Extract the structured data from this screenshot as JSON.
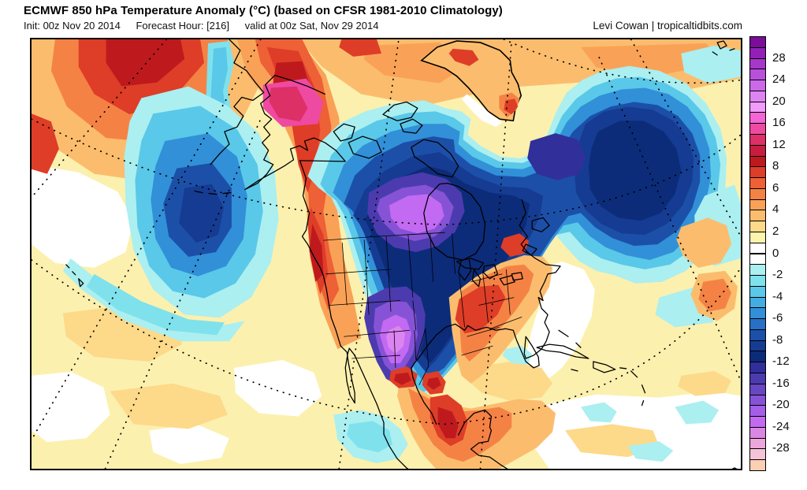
{
  "header": {
    "title": "ECMWF 850 hPa Temperature Anomaly (°C) (based on CFSR 1981-2010 Climatology)",
    "init": "Init: 00z Nov 20 2014",
    "forecast_hour": "Forecast Hour: [216]",
    "valid": "valid at 00z Sat, Nov 29 2014",
    "credit": "Levi Cowan | tropicaltidbits.com"
  },
  "chart_data": {
    "type": "heatmap",
    "title": "ECMWF 850 hPa Temperature Anomaly (°C)",
    "units": "°C",
    "climatology": "CFSR 1981-2010",
    "legend_position": "right",
    "colorbar": {
      "orientation": "vertical",
      "top_value_exceeds": 30,
      "bottom_value_exceeds": -30,
      "cells_top_to_bottom": [
        "#7B0D9B",
        "#9220B6",
        "#A637CA",
        "#B950DA",
        "#CB69E8",
        "#DC85F2",
        "#F19BFA",
        "#F366D6",
        "#EE4AA2",
        "#DC3066",
        "#C61E40",
        "#BE1A1E",
        "#DE3D27",
        "#EE6036",
        "#F58245",
        "#F9A257",
        "#FBBD6D",
        "#FDD98A",
        "#FEF4AB",
        "#FFFFFF",
        "#FFFFFF",
        "#ABEFF0",
        "#7FE1EC",
        "#5AC8E8",
        "#43ACE2",
        "#3190D8",
        "#2870C6",
        "#1C50A8",
        "#153C92",
        "#0C2C7A",
        "#312F9A",
        "#4C3BAE",
        "#6847C2",
        "#8653D6",
        "#A45EE8",
        "#C36AF2",
        "#D986E4",
        "#EBA7DA",
        "#F5C3D8",
        "#FACFB2"
      ],
      "labels": [
        {
          "text": "28",
          "after_cell": 2
        },
        {
          "text": "24",
          "after_cell": 4
        },
        {
          "text": "20",
          "after_cell": 6
        },
        {
          "text": "16",
          "after_cell": 8
        },
        {
          "text": "12",
          "after_cell": 10
        },
        {
          "text": "8",
          "after_cell": 12
        },
        {
          "text": "6",
          "after_cell": 14
        },
        {
          "text": "4",
          "after_cell": 16
        },
        {
          "text": "2",
          "after_cell": 18
        },
        {
          "text": "0",
          "after_cell": 20
        },
        {
          "text": "-2",
          "after_cell": 22
        },
        {
          "text": "-4",
          "after_cell": 24
        },
        {
          "text": "-6",
          "after_cell": 26
        },
        {
          "text": "-8",
          "after_cell": 28
        },
        {
          "text": "-12",
          "after_cell": 30
        },
        {
          "text": "-16",
          "after_cell": 32
        },
        {
          "text": "-20",
          "after_cell": 34
        },
        {
          "text": "-24",
          "after_cell": 36
        },
        {
          "text": "-28",
          "after_cell": 38
        }
      ]
    }
  }
}
